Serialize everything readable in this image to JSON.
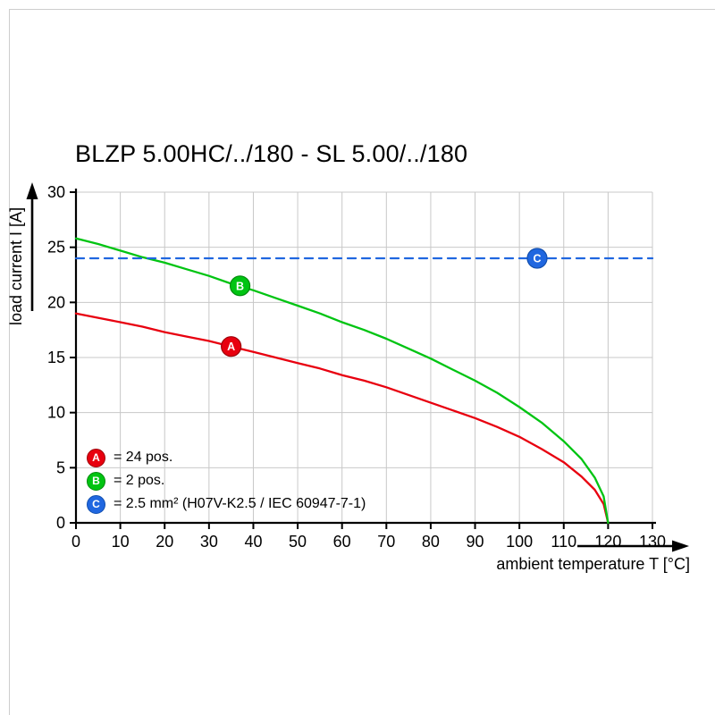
{
  "page": {
    "background": "#ffffff"
  },
  "chart_data": {
    "type": "line",
    "title": "BLZP 5.00HC/../180 - SL 5.00/../180",
    "xlabel": "ambient temperature T [°C]",
    "ylabel": "load current I [A]",
    "xlim": [
      0,
      130
    ],
    "ylim": [
      0,
      30
    ],
    "xticks": [
      0,
      10,
      20,
      30,
      40,
      50,
      60,
      70,
      80,
      90,
      100,
      110,
      120,
      130
    ],
    "yticks": [
      0,
      5,
      10,
      15,
      20,
      25,
      30
    ],
    "grid": true,
    "grid_color": "#c8c8c8",
    "axis_color": "#000000",
    "legend_position": "inside-bottom-left",
    "series": [
      {
        "id": "A",
        "legend_label": "= 24 pos.",
        "color": "#e8000f",
        "edge_color": "#9e0009",
        "line_style": "solid",
        "marker": {
          "x": 35,
          "y": 16.0
        },
        "points": [
          [
            0,
            19
          ],
          [
            5,
            18.6
          ],
          [
            10,
            18.2
          ],
          [
            15,
            17.8
          ],
          [
            20,
            17.3
          ],
          [
            25,
            16.9
          ],
          [
            30,
            16.5
          ],
          [
            35,
            16
          ],
          [
            40,
            15.5
          ],
          [
            45,
            15
          ],
          [
            50,
            14.5
          ],
          [
            55,
            14
          ],
          [
            60,
            13.4
          ],
          [
            65,
            12.9
          ],
          [
            70,
            12.3
          ],
          [
            75,
            11.6
          ],
          [
            80,
            10.9
          ],
          [
            85,
            10.2
          ],
          [
            90,
            9.5
          ],
          [
            95,
            8.7
          ],
          [
            100,
            7.8
          ],
          [
            105,
            6.7
          ],
          [
            110,
            5.5
          ],
          [
            114,
            4.2
          ],
          [
            117,
            3
          ],
          [
            119,
            1.7
          ],
          [
            120,
            0
          ]
        ]
      },
      {
        "id": "B",
        "legend_label": "= 2 pos.",
        "color": "#00c412",
        "edge_color": "#008a0c",
        "line_style": "solid",
        "marker": {
          "x": 37,
          "y": 21.5
        },
        "points": [
          [
            0,
            25.8
          ],
          [
            5,
            25.3
          ],
          [
            10,
            24.7
          ],
          [
            15,
            24.1
          ],
          [
            20,
            23.6
          ],
          [
            25,
            23
          ],
          [
            30,
            22.4
          ],
          [
            35,
            21.7
          ],
          [
            40,
            21.1
          ],
          [
            45,
            20.4
          ],
          [
            50,
            19.7
          ],
          [
            55,
            19
          ],
          [
            60,
            18.2
          ],
          [
            65,
            17.5
          ],
          [
            70,
            16.7
          ],
          [
            75,
            15.8
          ],
          [
            80,
            14.9
          ],
          [
            85,
            13.9
          ],
          [
            90,
            12.9
          ],
          [
            95,
            11.8
          ],
          [
            100,
            10.5
          ],
          [
            105,
            9.1
          ],
          [
            110,
            7.4
          ],
          [
            114,
            5.8
          ],
          [
            117,
            4.1
          ],
          [
            119,
            2.4
          ],
          [
            120,
            0
          ]
        ]
      },
      {
        "id": "C",
        "legend_label": "= 2.5 mm² (H07V-K2.5 / IEC 60947-7-1)",
        "color": "#2067e0",
        "edge_color": "#124fae",
        "line_style": "dashed",
        "marker": {
          "x": 104,
          "y": 24
        },
        "points": [
          [
            0,
            24
          ],
          [
            130,
            24
          ]
        ]
      }
    ]
  }
}
